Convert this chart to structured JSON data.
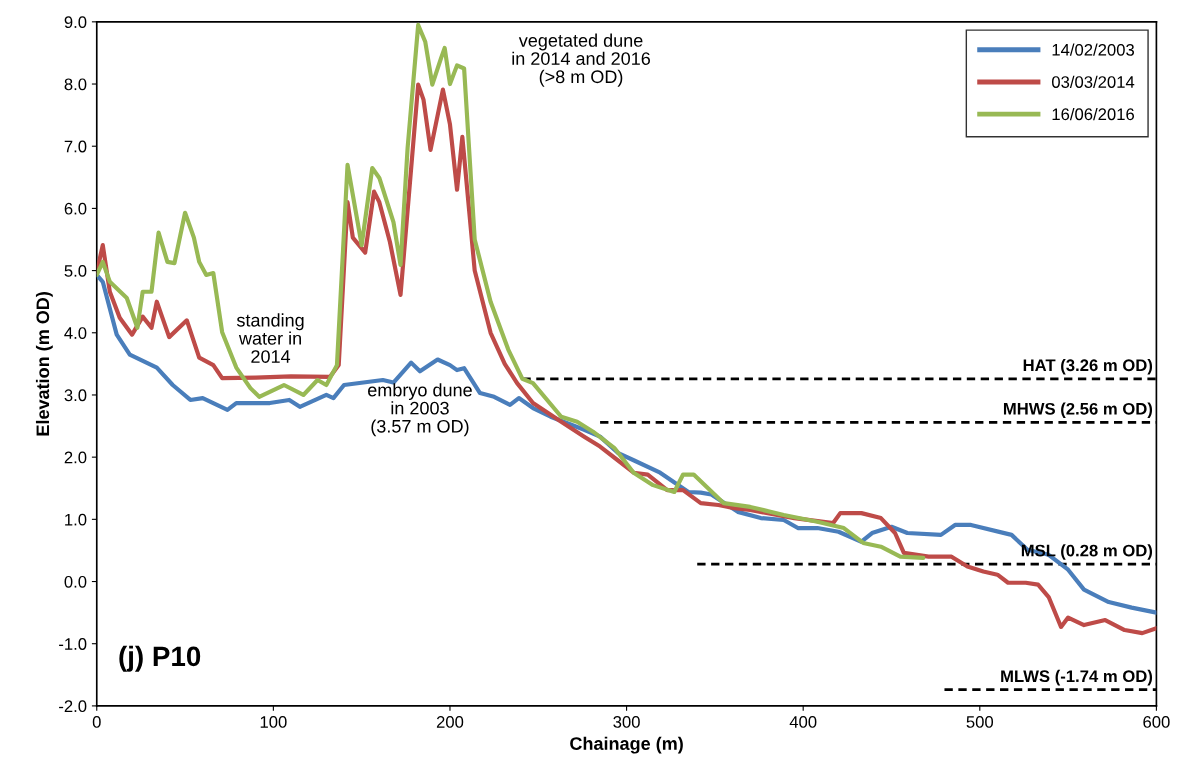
{
  "chart_data": {
    "type": "line",
    "xlabel": "Chainage (m)",
    "ylabel": "Elevation (m OD)",
    "xlim": [
      0,
      600
    ],
    "xticks": [
      0,
      100,
      200,
      300,
      400,
      500,
      600
    ],
    "ylim": [
      -2,
      9
    ],
    "yticks": [
      {
        "value": -2,
        "label": "-2.0"
      },
      {
        "value": -1,
        "label": "-1.0"
      },
      {
        "value": 0,
        "label": "0.0"
      },
      {
        "value": 1,
        "label": "1.0"
      },
      {
        "value": 2,
        "label": "2.0"
      },
      {
        "value": 3,
        "label": "3.0"
      },
      {
        "value": 4,
        "label": "4.0"
      },
      {
        "value": 5,
        "label": "5.0"
      },
      {
        "value": 6,
        "label": "6.0"
      },
      {
        "value": 7,
        "label": "7.0"
      },
      {
        "value": 8,
        "label": "8.0"
      },
      {
        "value": 9,
        "label": "9.0"
      }
    ],
    "grid": false,
    "legend": "top right",
    "marker": "none",
    "series": [
      {
        "name": "14/02/2003",
        "color": "#4a7ebb",
        "line_style": "solid",
        "x": [
          0,
          3.4,
          11.3,
          18.7,
          34,
          43,
          53,
          60,
          74,
          79,
          98,
          109,
          115,
          130,
          134,
          140,
          162,
          168,
          178,
          183,
          193,
          200,
          204,
          208,
          217,
          225,
          234,
          239,
          247,
          257,
          276,
          285,
          295,
          304,
          319,
          335,
          342,
          348,
          363,
          376,
          389,
          397,
          408,
          420,
          433,
          439,
          450,
          459,
          478,
          486,
          495,
          518,
          527,
          539,
          550,
          559,
          573,
          586,
          600
        ],
        "values": [
          4.93,
          4.82,
          3.97,
          3.65,
          3.44,
          3.16,
          2.92,
          2.95,
          2.76,
          2.87,
          2.87,
          2.92,
          2.81,
          3.0,
          2.95,
          3.16,
          3.24,
          3.2,
          3.52,
          3.38,
          3.57,
          3.48,
          3.4,
          3.43,
          3.03,
          2.97,
          2.84,
          2.95,
          2.79,
          2.65,
          2.44,
          2.33,
          2.07,
          1.95,
          1.75,
          1.44,
          1.43,
          1.4,
          1.12,
          1.02,
          0.99,
          0.86,
          0.86,
          0.8,
          0.64,
          0.78,
          0.88,
          0.78,
          0.75,
          0.91,
          0.91,
          0.75,
          0.51,
          0.43,
          0.19,
          -0.13,
          -0.33,
          -0.42,
          -0.5
        ]
      },
      {
        "name": "03/03/2014",
        "color": "#be4b48",
        "line_style": "solid",
        "x": [
          0,
          3.4,
          7.4,
          13,
          20,
          26,
          31,
          34,
          41,
          51,
          58,
          66,
          71,
          90,
          110,
          132,
          137,
          142,
          145,
          152,
          157,
          160,
          166,
          172,
          182,
          185,
          189,
          196,
          200,
          204,
          207,
          214,
          223,
          231,
          238,
          247,
          263,
          276,
          285,
          295,
          304,
          312,
          323,
          332,
          342,
          352,
          361,
          370,
          395,
          417,
          421,
          433,
          444,
          452,
          457,
          471,
          484,
          493,
          502,
          510,
          516,
          526,
          533,
          539,
          546,
          550,
          559,
          571,
          582,
          592,
          600
        ],
        "values": [
          4.97,
          5.41,
          4.66,
          4.24,
          3.97,
          4.26,
          4.08,
          4.5,
          3.93,
          4.2,
          3.6,
          3.48,
          3.27,
          3.28,
          3.3,
          3.29,
          3.48,
          6.1,
          5.53,
          5.29,
          6.27,
          6.1,
          5.46,
          4.61,
          7.99,
          7.75,
          6.94,
          7.91,
          7.35,
          6.3,
          7.15,
          5.0,
          4.0,
          3.5,
          3.19,
          2.87,
          2.57,
          2.33,
          2.17,
          1.95,
          1.75,
          1.72,
          1.47,
          1.47,
          1.26,
          1.23,
          1.18,
          1.15,
          1.02,
          0.94,
          1.1,
          1.1,
          1.02,
          0.78,
          0.46,
          0.4,
          0.4,
          0.24,
          0.16,
          0.11,
          -0.02,
          -0.02,
          -0.05,
          -0.25,
          -0.73,
          -0.58,
          -0.7,
          -0.62,
          -0.78,
          -0.83,
          -0.75
        ]
      },
      {
        "name": "16/06/2016",
        "color": "#98b954",
        "line_style": "solid",
        "x": [
          0,
          3.4,
          7.4,
          17,
          23,
          26,
          31,
          35,
          40,
          44,
          50,
          55,
          58,
          62,
          66,
          71,
          79,
          87,
          92,
          106,
          117,
          125,
          130,
          136,
          142,
          150,
          156,
          160,
          168,
          172,
          176,
          182,
          186,
          190,
          195,
          197,
          200,
          204,
          208,
          214,
          223,
          233,
          241,
          247,
          263,
          272,
          281,
          293,
          304,
          315,
          327,
          332,
          338,
          355,
          370,
          389,
          408,
          423,
          434,
          444,
          455,
          468
        ],
        "values": [
          4.93,
          5.14,
          4.82,
          4.56,
          4.08,
          4.66,
          4.66,
          5.61,
          5.14,
          5.12,
          5.93,
          5.53,
          5.14,
          4.93,
          4.96,
          4.01,
          3.44,
          3.11,
          2.97,
          3.16,
          3.0,
          3.24,
          3.16,
          3.48,
          6.7,
          5.41,
          6.65,
          6.49,
          5.78,
          5.09,
          6.97,
          8.95,
          8.68,
          7.99,
          8.42,
          8.58,
          8.0,
          8.3,
          8.25,
          5.5,
          4.5,
          3.73,
          3.26,
          3.19,
          2.65,
          2.57,
          2.41,
          2.15,
          1.75,
          1.55,
          1.44,
          1.72,
          1.72,
          1.26,
          1.2,
          1.07,
          0.96,
          0.86,
          0.62,
          0.56,
          0.4,
          0.38
        ]
      },
      {
        "name": "HAT (3.26 m OD)",
        "color": "#000000",
        "line_style": "dashed",
        "x": [
          241,
          600
        ],
        "values": [
          3.26,
          3.26
        ]
      },
      {
        "name": "MHWS (2.56 m OD)",
        "color": "#000000",
        "line_style": "dashed",
        "x": [
          285,
          600
        ],
        "values": [
          2.56,
          2.56
        ]
      },
      {
        "name": "MSL (0.28 m OD)",
        "color": "#000000",
        "line_style": "dashed",
        "x": [
          340,
          600
        ],
        "values": [
          0.28,
          0.28
        ]
      },
      {
        "name": "MLWS (-1.74 m OD)",
        "color": "#000000",
        "line_style": "dashed",
        "x": [
          480,
          600
        ],
        "values": [
          -1.74,
          -1.74
        ]
      }
    ],
    "annotations": [
      "standing\nwater in\n2014",
      "embryo dune\nin 2003\n(3.57 m OD)",
      "vegetated dune\nin 2014 and 2016\n(>8 m OD)",
      "(j) P10"
    ]
  }
}
